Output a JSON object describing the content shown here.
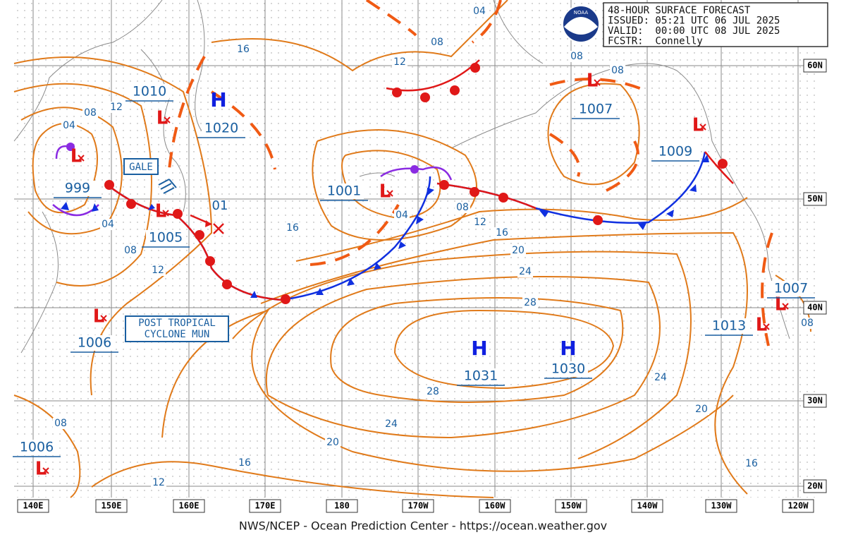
{
  "header": {
    "lines": [
      "48-HOUR SURFACE FORECAST",
      "ISSUED: 05:21 UTC 06 JUL 2025",
      "VALID:  00:00 UTC 08 JUL 2025",
      "FCSTR:  Connelly"
    ],
    "logo": "NOAA"
  },
  "pressure_centers": [
    {
      "symbol": "L",
      "value": "1010"
    },
    {
      "symbol": "H",
      "value": "1020"
    },
    {
      "symbol": "L",
      "value": "999"
    },
    {
      "symbol": "L",
      "value": "1005"
    },
    {
      "symbol": "L",
      "value": "1001"
    },
    {
      "symbol": "L",
      "value": "1007"
    },
    {
      "symbol": "L",
      "value": "1009"
    },
    {
      "symbol": "L",
      "value": "1006"
    },
    {
      "symbol": "H",
      "value": "1031"
    },
    {
      "symbol": "H",
      "value": "1030"
    },
    {
      "symbol": "L",
      "value": "1007"
    },
    {
      "symbol": "L",
      "value": "1013"
    },
    {
      "symbol": "L",
      "value": "1006"
    }
  ],
  "isobar_labels": [
    "04",
    "08",
    "12",
    "16",
    "08",
    "08",
    "12",
    "08",
    "04",
    "04",
    "08",
    "12",
    "16",
    "04",
    "08",
    "12",
    "16",
    "20",
    "24",
    "28",
    "28",
    "24",
    "20",
    "16",
    "12",
    "08",
    "24",
    "20",
    "16",
    "08"
  ],
  "annotations": {
    "gale": "GALE",
    "post_tropical": [
      "POST TROPICAL",
      "CYCLONE MUN"
    ],
    "new_low": "01"
  },
  "latitude_labels": [
    "60N",
    "50N",
    "40N",
    "30N",
    "20N"
  ],
  "longitude_labels": [
    "140E",
    "150E",
    "160E",
    "170E",
    "180",
    "170W",
    "160W",
    "150W",
    "140W",
    "130W",
    "120W"
  ],
  "footer": "NWS/NCEP - Ocean Prediction Center - https://ocean.weather.gov"
}
